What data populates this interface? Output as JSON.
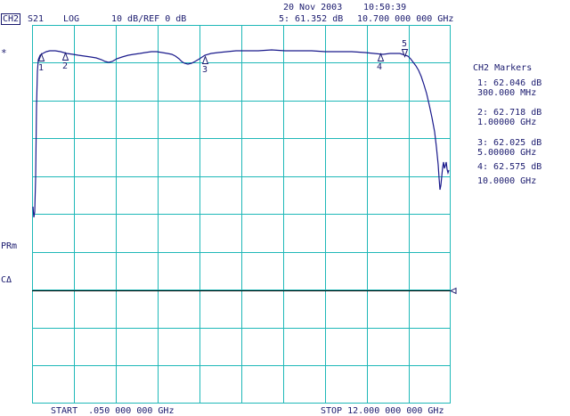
{
  "header": {
    "date": "20 Nov 2003",
    "time": "10:50:39",
    "channel": "CH2",
    "param": "S21",
    "format": "LOG",
    "scale": "10 dB/REF 0 dB",
    "active_marker": "5: 61.352 dB",
    "active_freq": "10.700 000 000 GHz",
    "star": "*"
  },
  "left_labels": {
    "prm": "PRm",
    "ca": "CΔ"
  },
  "markers_panel": {
    "title": "CH2 Markers",
    "items": [
      {
        "line1": "1: 62.046 dB",
        "line2": "300.000 MHz"
      },
      {
        "line1": "2: 62.718 dB",
        "line2": "1.00000 GHz"
      },
      {
        "line1": "3: 62.025 dB",
        "line2": "5.00000 GHz"
      },
      {
        "line1": "4: 62.575 dB",
        "line2": "10.0000 GHz"
      }
    ]
  },
  "footer": {
    "start": "START  .050 000 000 GHz",
    "stop": "STOP 12.000 000 000 GHz"
  },
  "marker_ids": [
    "1",
    "2",
    "3",
    "4",
    "5"
  ],
  "colors": {
    "grid": "#1fb8b8",
    "trace": "#1a1a8c",
    "text": "#1a1a6e",
    "refline": "#000000"
  }
}
